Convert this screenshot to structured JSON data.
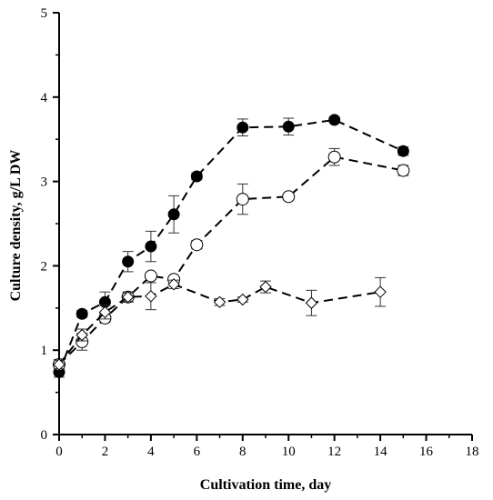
{
  "chart_data": {
    "type": "scatter",
    "title": "",
    "xlabel": "Cultivation time, day",
    "ylabel": "Culture density, g/L DW",
    "xlim": [
      0,
      18
    ],
    "ylim": [
      0,
      5
    ],
    "x_ticks": [
      "0",
      "2",
      "4",
      "6",
      "8",
      "10",
      "12",
      "14",
      "16",
      "18"
    ],
    "y_ticks": [
      "0",
      "1",
      "2",
      "3",
      "4",
      "5"
    ],
    "grid": false,
    "legend": "none",
    "line_style": "dashed",
    "series": [
      {
        "marker": "filled-circle",
        "color": "#000000",
        "x": [
          0,
          1,
          2,
          3,
          4,
          5,
          6,
          8,
          10,
          12,
          15
        ],
        "y": [
          0.74,
          1.43,
          1.57,
          2.05,
          2.23,
          2.61,
          3.06,
          3.64,
          3.65,
          3.73,
          3.36
        ],
        "err": [
          0.06,
          0.04,
          0.12,
          0.12,
          0.18,
          0.22,
          0.04,
          0.1,
          0.1,
          0.03,
          0.05
        ]
      },
      {
        "marker": "open-circle",
        "color": "#000000",
        "x": [
          0,
          1,
          2,
          3,
          4,
          5,
          6,
          8,
          10,
          12,
          15
        ],
        "y": [
          0.83,
          1.1,
          1.38,
          1.63,
          1.88,
          1.84,
          2.25,
          2.79,
          2.82,
          3.29,
          3.13
        ],
        "err": [
          0.06,
          0.1,
          0.05,
          0.06,
          0.04,
          0.03,
          0.05,
          0.18,
          0.04,
          0.1,
          0.06
        ]
      },
      {
        "marker": "open-diamond",
        "color": "#000000",
        "x": [
          0,
          1,
          2,
          3,
          4,
          5,
          7,
          8,
          9,
          11,
          14
        ],
        "y": [
          0.83,
          1.18,
          1.45,
          1.63,
          1.64,
          1.78,
          1.57,
          1.6,
          1.75,
          1.56,
          1.69
        ],
        "err": [
          0.05,
          0.07,
          0.08,
          0.05,
          0.16,
          0.05,
          0.04,
          0.03,
          0.07,
          0.15,
          0.17
        ]
      }
    ]
  }
}
